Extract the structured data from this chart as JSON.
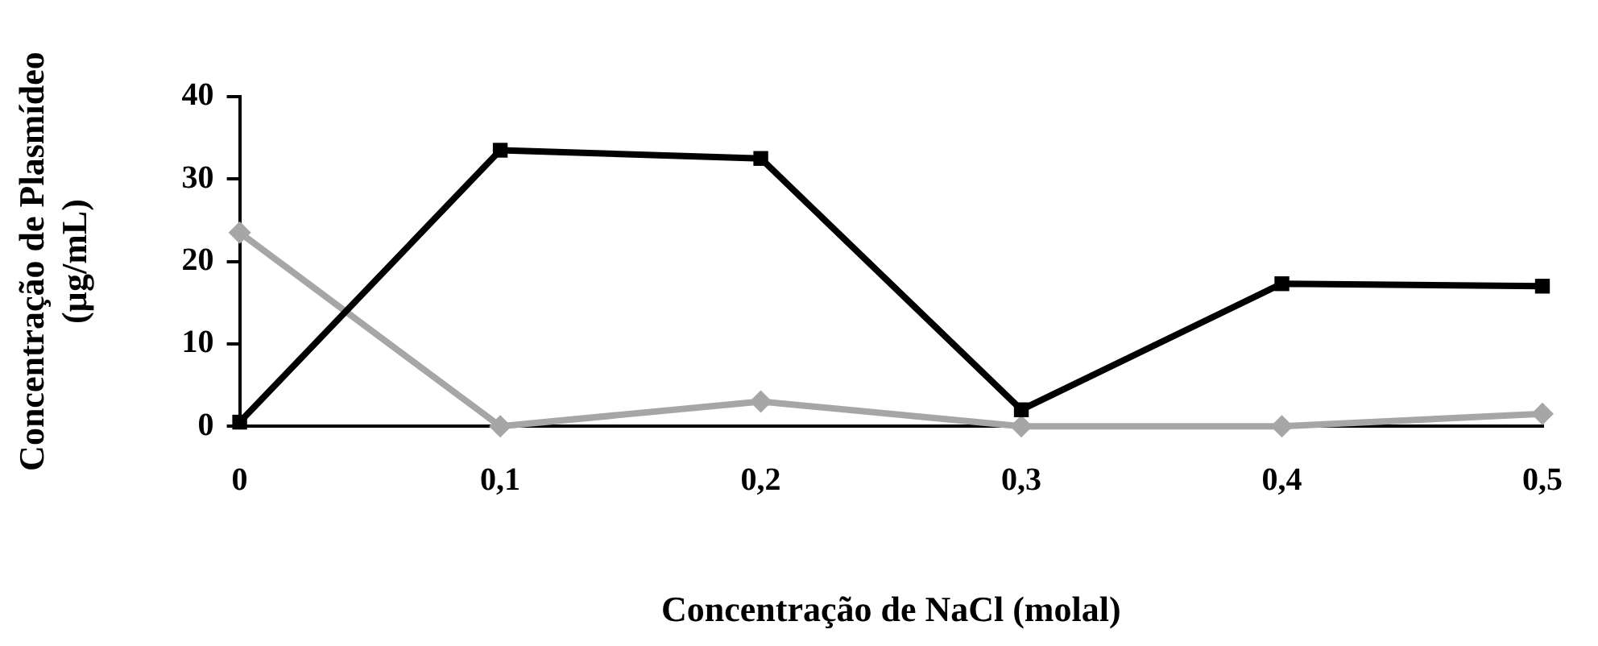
{
  "chart_data": {
    "type": "line",
    "ylabel": "Concentração de Plasmídeo (µg/mL)",
    "xlabel": "Concentração de NaCl (molal)",
    "x": [
      0,
      0.1,
      0.2,
      0.3,
      0.4,
      0.5
    ],
    "series": [
      {
        "color": "#000000",
        "marker": "square",
        "values": [
          0.5,
          33.5,
          32.5,
          2,
          17.3,
          17
        ]
      },
      {
        "color": "#a6a6a6",
        "marker": "diamond",
        "values": [
          23.5,
          0,
          3,
          0,
          0,
          1.5
        ]
      }
    ],
    "xlim": [
      0,
      0.5
    ],
    "xticks": [
      0,
      {
        "value": 0.1,
        "label": "0,1"
      },
      {
        "value": 0.2,
        "label": "0,2"
      },
      {
        "value": 0.3,
        "label": "0,3"
      },
      {
        "value": 0.4,
        "label": "0,4"
      },
      {
        "value": 0.5,
        "label": "0,5"
      }
    ],
    "ylim": [
      0,
      40
    ],
    "yticks": [
      0,
      10,
      20,
      30,
      40
    ],
    "grid": false,
    "legend": false
  }
}
